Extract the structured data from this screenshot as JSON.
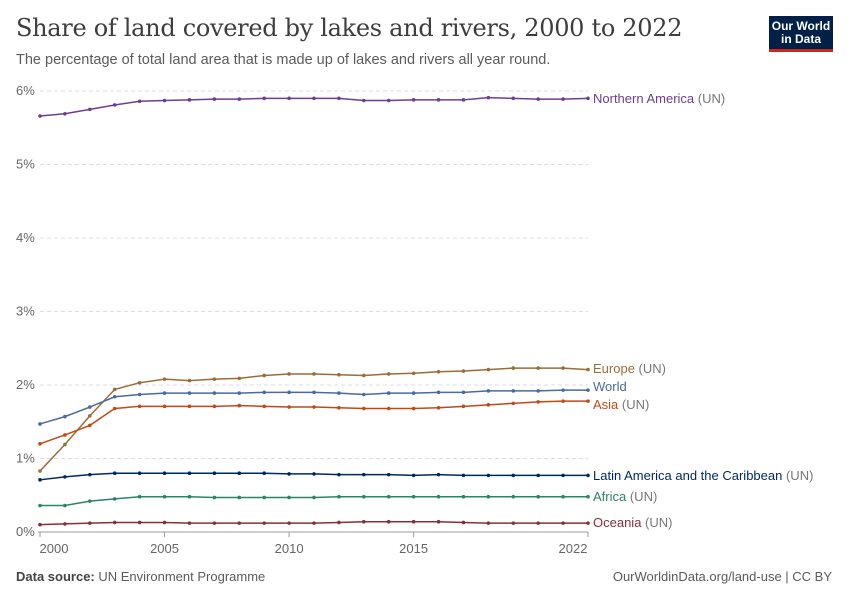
{
  "header": {
    "title": "Share of land covered by lakes and rivers, 2000 to 2022",
    "subtitle": "The percentage of total land area that is made up of lakes and rivers all year round.",
    "logo": "Our World in Data"
  },
  "footer": {
    "source_label": "Data source:",
    "source": "UN Environment Programme",
    "credit": "OurWorldinData.org/land-use | CC BY"
  },
  "chart_data": {
    "type": "line",
    "title": "Share of land covered by lakes and rivers, 2000 to 2022",
    "xlim": [
      2000,
      2022
    ],
    "ylim": [
      0,
      6
    ],
    "x_ticks": [
      2000,
      2005,
      2010,
      2015,
      2022
    ],
    "y_ticks": [
      "0%",
      "1%",
      "2%",
      "3%",
      "4%",
      "5%",
      "6%"
    ],
    "grid": "horizontal dashed",
    "legend": "inline-right",
    "x": [
      2000,
      2001,
      2002,
      2003,
      2004,
      2005,
      2006,
      2007,
      2008,
      2009,
      2010,
      2011,
      2012,
      2013,
      2014,
      2015,
      2016,
      2017,
      2018,
      2019,
      2020,
      2021,
      2022
    ],
    "series": [
      {
        "name": "Northern America",
        "suffix": "(UN)",
        "color": "#6D3E91",
        "values": [
          5.66,
          5.69,
          5.75,
          5.81,
          5.86,
          5.87,
          5.88,
          5.89,
          5.89,
          5.9,
          5.9,
          5.9,
          5.9,
          5.87,
          5.87,
          5.88,
          5.88,
          5.88,
          5.91,
          5.9,
          5.89,
          5.89,
          5.9
        ]
      },
      {
        "name": "Europe",
        "suffix": "(UN)",
        "color": "#996D39",
        "values": [
          0.83,
          1.19,
          1.58,
          1.94,
          2.03,
          2.08,
          2.06,
          2.08,
          2.09,
          2.13,
          2.15,
          2.15,
          2.14,
          2.13,
          2.15,
          2.16,
          2.18,
          2.19,
          2.21,
          2.23,
          2.23,
          2.23,
          2.21
        ]
      },
      {
        "name": "World",
        "suffix": "",
        "color": "#4C6A9C",
        "values": [
          1.47,
          1.57,
          1.7,
          1.84,
          1.87,
          1.89,
          1.89,
          1.89,
          1.89,
          1.9,
          1.9,
          1.9,
          1.89,
          1.87,
          1.89,
          1.89,
          1.9,
          1.9,
          1.92,
          1.92,
          1.92,
          1.93,
          1.93
        ]
      },
      {
        "name": "Asia",
        "suffix": "(UN)",
        "color": "#C04A17",
        "values": [
          1.2,
          1.32,
          1.45,
          1.68,
          1.71,
          1.71,
          1.71,
          1.71,
          1.72,
          1.71,
          1.7,
          1.7,
          1.69,
          1.68,
          1.68,
          1.68,
          1.69,
          1.71,
          1.73,
          1.75,
          1.77,
          1.78,
          1.78
        ]
      },
      {
        "name": "Latin America and the Caribbean",
        "suffix": "(UN)",
        "color": "#00295B",
        "values": [
          0.71,
          0.75,
          0.78,
          0.8,
          0.8,
          0.8,
          0.8,
          0.8,
          0.8,
          0.8,
          0.79,
          0.79,
          0.78,
          0.78,
          0.78,
          0.77,
          0.78,
          0.77,
          0.77,
          0.77,
          0.77,
          0.77,
          0.77
        ]
      },
      {
        "name": "Africa",
        "suffix": "(UN)",
        "color": "#2C8465",
        "values": [
          0.36,
          0.36,
          0.42,
          0.45,
          0.48,
          0.48,
          0.48,
          0.47,
          0.47,
          0.47,
          0.47,
          0.47,
          0.48,
          0.48,
          0.48,
          0.48,
          0.48,
          0.48,
          0.48,
          0.48,
          0.48,
          0.48,
          0.48
        ]
      },
      {
        "name": "Oceania",
        "suffix": "(UN)",
        "color": "#883039",
        "values": [
          0.1,
          0.11,
          0.12,
          0.13,
          0.13,
          0.13,
          0.12,
          0.12,
          0.12,
          0.12,
          0.12,
          0.12,
          0.13,
          0.14,
          0.14,
          0.14,
          0.14,
          0.13,
          0.12,
          0.12,
          0.12,
          0.12,
          0.12
        ]
      }
    ]
  }
}
